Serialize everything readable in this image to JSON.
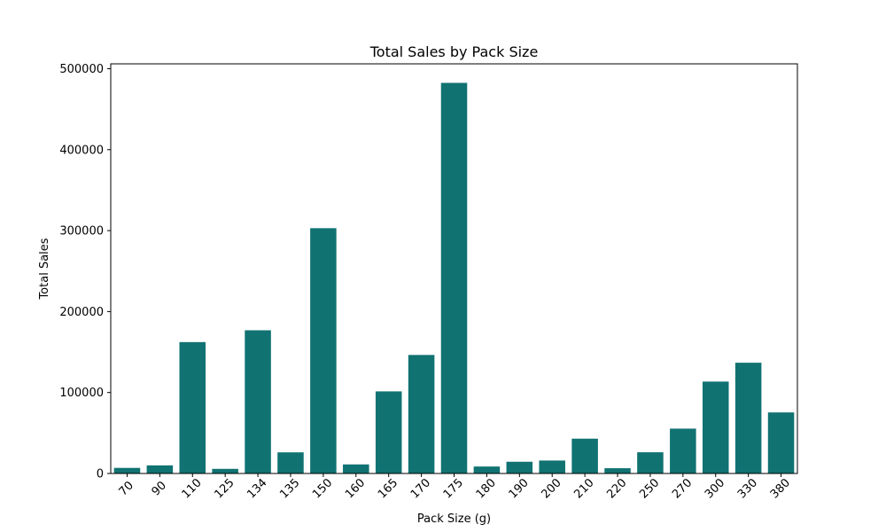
{
  "chart_data": {
    "type": "bar",
    "title": "Total Sales by Pack Size",
    "xlabel": "Pack Size (g)",
    "ylabel": "Total Sales",
    "categories": [
      "70",
      "90",
      "110",
      "125",
      "134",
      "135",
      "150",
      "160",
      "165",
      "170",
      "175",
      "180",
      "190",
      "200",
      "210",
      "220",
      "250",
      "270",
      "300",
      "330",
      "380"
    ],
    "values": [
      6900,
      10000,
      162300,
      5700,
      176900,
      26100,
      303000,
      11200,
      101400,
      146400,
      482500,
      8600,
      14500,
      16000,
      43000,
      6500,
      26200,
      55400,
      113500,
      136800,
      75400
    ],
    "ylim": [
      0,
      506000
    ],
    "yticks": [
      0,
      100000,
      200000,
      300000,
      400000,
      500000
    ],
    "ytick_labels": [
      "0",
      "100000",
      "200000",
      "300000",
      "400000",
      "500000"
    ],
    "bar_color": "#117272",
    "grid": false
  }
}
